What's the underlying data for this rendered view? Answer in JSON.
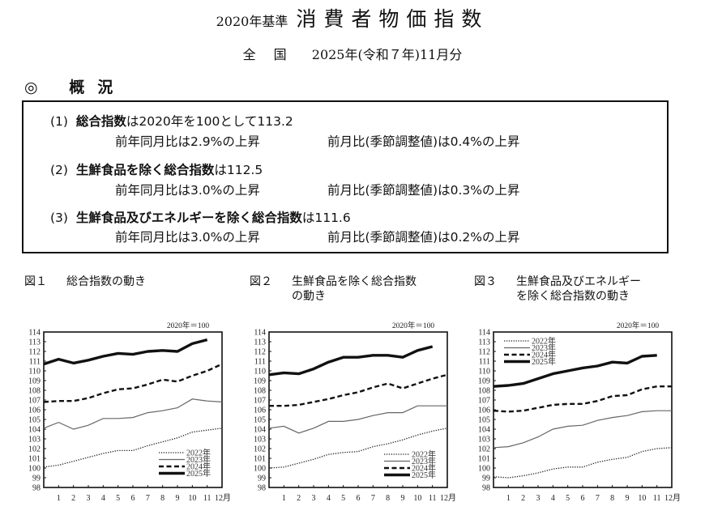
{
  "header": {
    "base": "2020年基準",
    "title": "消費者物価指数",
    "region": "全国",
    "period": "2025年(令和７年)11月分"
  },
  "overview": {
    "heading": "◎ 概況",
    "items": [
      {
        "num": "(1)",
        "bold": "総合指数",
        "rest": "は2020年を100として113.2",
        "yoy": "前年同月比は2.9%の上昇",
        "mom": "前月比(季節調整値)は0.4%の上昇"
      },
      {
        "num": "(2)",
        "bold": "生鮮食品を除く総合指数",
        "rest": "は112.5",
        "yoy": "前年同月比は3.0%の上昇",
        "mom": "前月比(季節調整値)は0.3%の上昇"
      },
      {
        "num": "(3)",
        "bold": "生鮮食品及びエネルギーを除く総合指数",
        "rest": "は111.6",
        "yoy": "前年同月比は3.0%の上昇",
        "mom": "前月比(季節調整値)は0.2%の上昇"
      }
    ]
  },
  "figures": [
    {
      "num": "図１",
      "title_lines": [
        "総合指数の動き"
      ]
    },
    {
      "num": "図２",
      "title_lines": [
        "生鮮食品を除く総合指数",
        "の動き"
      ]
    },
    {
      "num": "図３",
      "title_lines": [
        "生鮮食品及びエネルギー",
        "を除く総合指数の動き"
      ]
    }
  ],
  "chart_data": [
    {
      "type": "line",
      "title": "図１ 総合指数の動き",
      "base_note": "2020年＝100",
      "x": [
        0,
        1,
        2,
        3,
        4,
        5,
        6,
        7,
        8,
        9,
        10,
        11,
        12
      ],
      "x_tick_labels": [
        "1",
        "2",
        "3",
        "4",
        "5",
        "6",
        "7",
        "8",
        "9",
        "10",
        "11",
        "12月"
      ],
      "ylim": [
        98,
        114
      ],
      "y_ticks": [
        98,
        99,
        100,
        101,
        102,
        103,
        104,
        105,
        106,
        107,
        108,
        109,
        110,
        111,
        112,
        113,
        114
      ],
      "grid": false,
      "legend_position": "lower-right",
      "series": [
        {
          "name": "2022年",
          "style": "dotted",
          "values": [
            100.1,
            100.3,
            100.7,
            101.1,
            101.5,
            101.8,
            101.8,
            102.3,
            102.7,
            103.1,
            103.7,
            103.9,
            104.1
          ]
        },
        {
          "name": "2023年",
          "style": "thin",
          "values": [
            104.1,
            104.7,
            104.0,
            104.4,
            105.1,
            105.1,
            105.2,
            105.7,
            105.9,
            106.2,
            107.1,
            106.9,
            106.8
          ]
        },
        {
          "name": "2024年",
          "style": "dashed",
          "values": [
            106.8,
            106.9,
            106.9,
            107.2,
            107.7,
            108.1,
            108.2,
            108.6,
            109.1,
            108.9,
            109.5,
            110.0,
            110.7
          ]
        },
        {
          "name": "2025年",
          "style": "thick",
          "values": [
            110.7,
            111.2,
            110.8,
            111.1,
            111.5,
            111.8,
            111.7,
            112.0,
            112.1,
            112.0,
            112.8,
            113.2
          ]
        }
      ]
    },
    {
      "type": "line",
      "title": "図２ 生鮮食品を除く総合指数の動き",
      "base_note": "2020年＝100",
      "x": [
        0,
        1,
        2,
        3,
        4,
        5,
        6,
        7,
        8,
        9,
        10,
        11,
        12
      ],
      "x_tick_labels": [
        "1",
        "2",
        "3",
        "4",
        "5",
        "6",
        "7",
        "8",
        "9",
        "10",
        "11",
        "12月"
      ],
      "ylim": [
        98,
        114
      ],
      "y_ticks": [
        98,
        99,
        100,
        101,
        102,
        103,
        104,
        105,
        106,
        107,
        108,
        109,
        110,
        111,
        112,
        113,
        114
      ],
      "grid": false,
      "legend_position": "lower-right",
      "series": [
        {
          "name": "2022年",
          "style": "dotted",
          "values": [
            100.0,
            100.1,
            100.5,
            100.9,
            101.4,
            101.6,
            101.7,
            102.2,
            102.5,
            102.9,
            103.4,
            103.8,
            104.1
          ]
        },
        {
          "name": "2023年",
          "style": "thin",
          "values": [
            104.1,
            104.3,
            103.6,
            104.1,
            104.8,
            104.8,
            105.0,
            105.4,
            105.7,
            105.7,
            106.4,
            106.4,
            106.4
          ]
        },
        {
          "name": "2024年",
          "style": "dashed",
          "values": [
            106.4,
            106.4,
            106.5,
            106.8,
            107.1,
            107.5,
            107.8,
            108.3,
            108.7,
            108.2,
            108.7,
            109.2,
            109.6
          ]
        },
        {
          "name": "2025年",
          "style": "thick",
          "values": [
            109.6,
            109.8,
            109.7,
            110.2,
            110.9,
            111.4,
            111.4,
            111.6,
            111.6,
            111.4,
            112.1,
            112.5
          ]
        }
      ]
    },
    {
      "type": "line",
      "title": "図３ 生鮮食品及びエネルギーを除く総合指数の動き",
      "base_note": "2020年＝100",
      "x": [
        0,
        1,
        2,
        3,
        4,
        5,
        6,
        7,
        8,
        9,
        10,
        11,
        12
      ],
      "x_tick_labels": [
        "1",
        "2",
        "3",
        "4",
        "5",
        "6",
        "7",
        "8",
        "9",
        "10",
        "11",
        "12月"
      ],
      "ylim": [
        98,
        114
      ],
      "y_ticks": [
        98,
        99,
        100,
        101,
        102,
        103,
        104,
        105,
        106,
        107,
        108,
        109,
        110,
        111,
        112,
        113,
        114
      ],
      "grid": false,
      "legend_position": "upper-left",
      "series": [
        {
          "name": "2022年",
          "style": "dotted",
          "values": [
            99.1,
            99.0,
            99.2,
            99.5,
            99.9,
            100.1,
            100.1,
            100.6,
            100.9,
            101.1,
            101.7,
            102.0,
            102.1
          ]
        },
        {
          "name": "2023年",
          "style": "thin",
          "values": [
            102.1,
            102.2,
            102.6,
            103.2,
            104.0,
            104.3,
            104.4,
            104.9,
            105.2,
            105.4,
            105.8,
            105.9,
            105.9
          ]
        },
        {
          "name": "2024年",
          "style": "dashed",
          "values": [
            105.9,
            105.8,
            105.9,
            106.2,
            106.5,
            106.6,
            106.6,
            106.9,
            107.4,
            107.5,
            108.1,
            108.4,
            108.4
          ]
        },
        {
          "name": "2025年",
          "style": "thick",
          "values": [
            108.4,
            108.5,
            108.7,
            109.2,
            109.7,
            110.0,
            110.3,
            110.5,
            110.9,
            110.8,
            111.5,
            111.6
          ]
        }
      ]
    }
  ]
}
